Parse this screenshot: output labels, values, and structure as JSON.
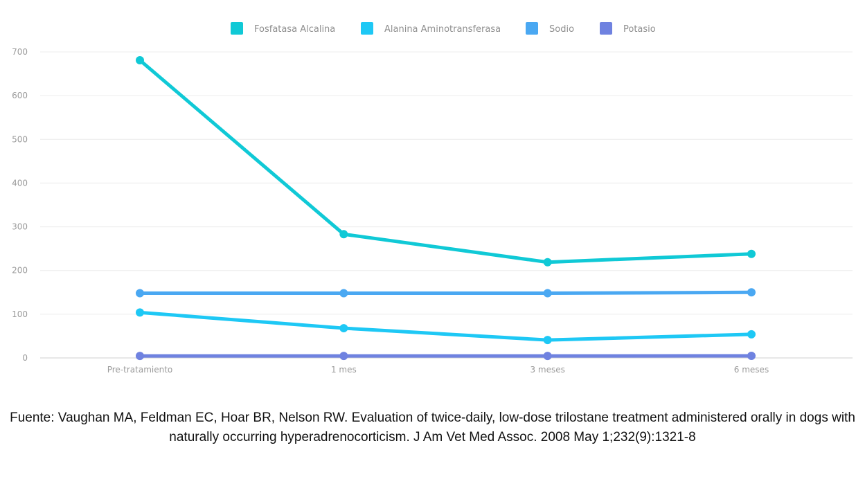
{
  "chart_data": {
    "type": "line",
    "categories": [
      "Pre-tratamiento",
      "1 mes",
      "3 meses",
      "6 meses"
    ],
    "series": [
      {
        "name": "Fosfatasa Alcalina",
        "color": "#10c9d6",
        "values": [
          681,
          283,
          219,
          238
        ]
      },
      {
        "name": "Alanina Aminotransferasa",
        "color": "#1ec8f5",
        "values": [
          104,
          68,
          41,
          54
        ]
      },
      {
        "name": "Sodio",
        "color": "#4aa8f2",
        "values": [
          148,
          148,
          148,
          150
        ]
      },
      {
        "name": "Potasio",
        "color": "#6f82e0",
        "values": [
          4.5,
          4.6,
          4.5,
          4.8
        ]
      }
    ],
    "ylim": [
      0,
      700
    ],
    "yticks": [
      0,
      100,
      200,
      300,
      400,
      500,
      600,
      700
    ],
    "grid": true,
    "legend_position": "top-center",
    "title": "",
    "xlabel": "",
    "ylabel": ""
  },
  "source_text": "Fuente: Vaughan MA, Feldman EC, Hoar BR, Nelson RW. Evaluation of twice-daily, low-dose trilostane treatment administered orally in dogs with naturally occurring hyperadrenocorticism. J Am Vet Med Assoc. 2008 May 1;232(9):1321-8"
}
